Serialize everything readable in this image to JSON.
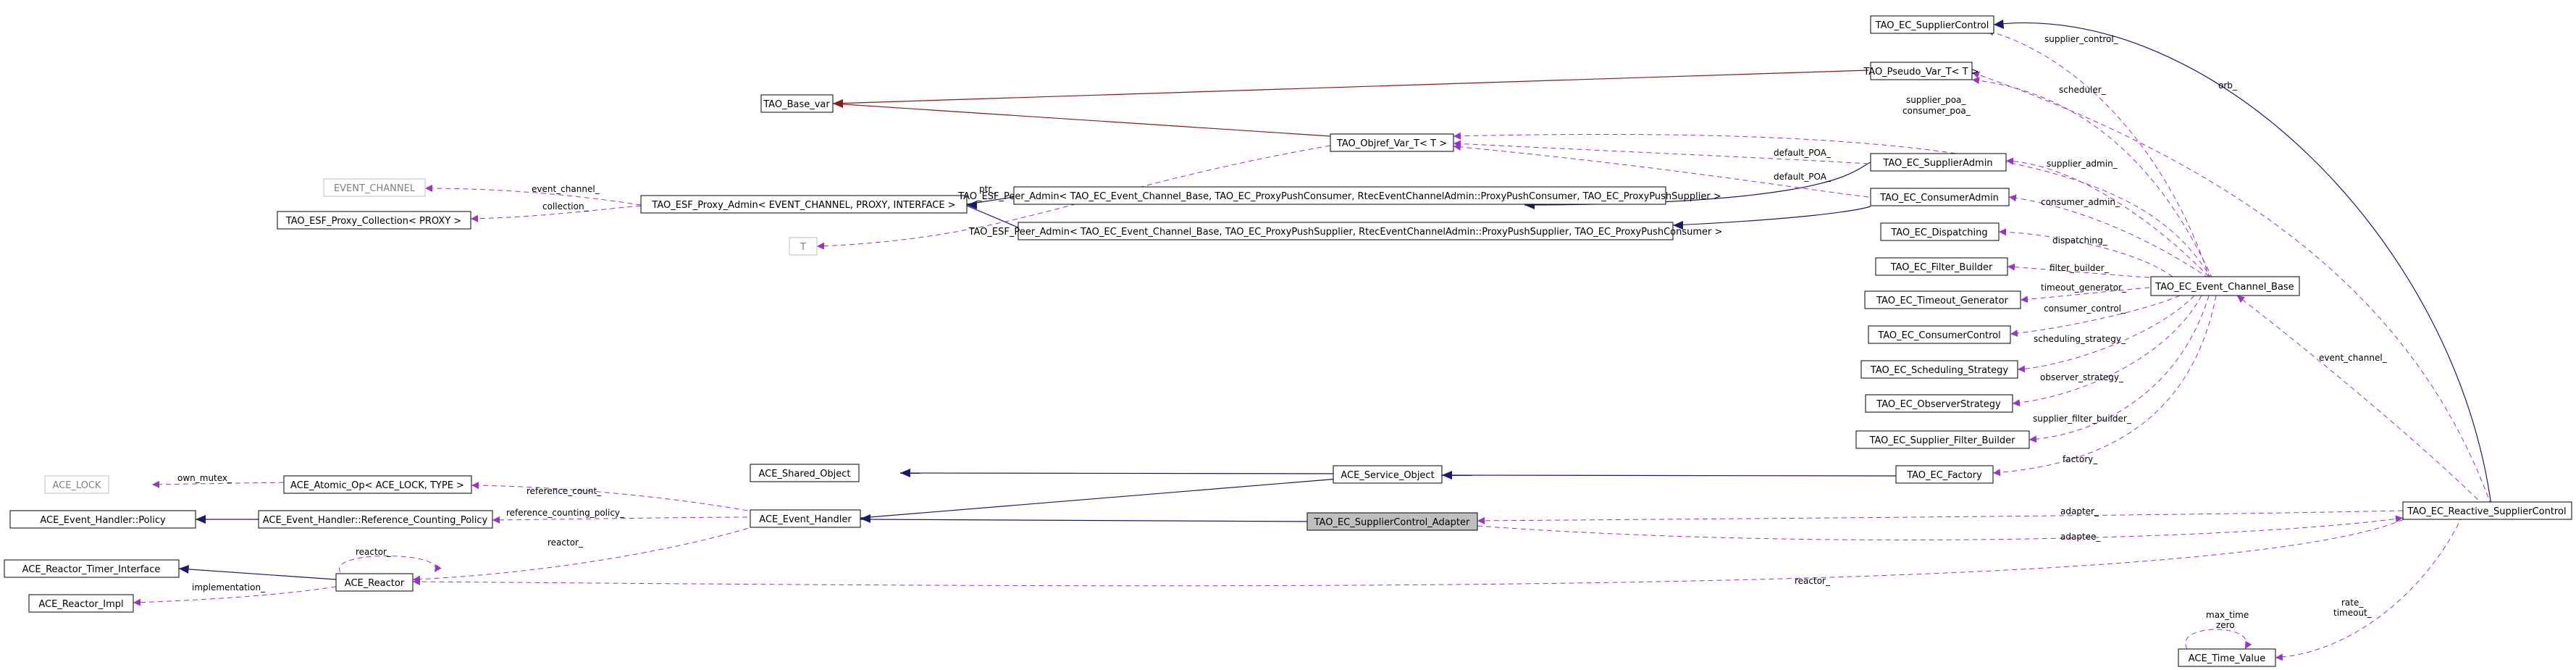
{
  "nodes": [
    {
      "id": "supplier_control",
      "label": "TAO_EC_SupplierControl"
    },
    {
      "id": "pseudo_var",
      "label": "TAO_Pseudo_Var_T< T >"
    },
    {
      "id": "base_var",
      "label": "TAO_Base_var"
    },
    {
      "id": "objref_var",
      "label": "TAO_Objref_Var_T< T >"
    },
    {
      "id": "event_channel",
      "label": "EVENT_CHANNEL"
    },
    {
      "id": "esf_proxy_admin",
      "label": "TAO_ESF_Proxy_Admin< EVENT_CHANNEL, PROXY, INTERFACE >"
    },
    {
      "id": "esf_proxy_collection",
      "label": "TAO_ESF_Proxy_Collection< PROXY >"
    },
    {
      "id": "t_param",
      "label": "T"
    },
    {
      "id": "peer_admin_consumer",
      "label": "TAO_ESF_Peer_Admin< TAO_EC_Event_Channel_Base, TAO_EC_ProxyPushConsumer, RtecEventChannelAdmin::ProxyPushConsumer, TAO_EC_ProxyPushSupplier >"
    },
    {
      "id": "peer_admin_supplier",
      "label": "TAO_ESF_Peer_Admin< TAO_EC_Event_Channel_Base, TAO_EC_ProxyPushSupplier, RtecEventChannelAdmin::ProxyPushSupplier, TAO_EC_ProxyPushConsumer >"
    },
    {
      "id": "supplier_admin",
      "label": "TAO_EC_SupplierAdmin"
    },
    {
      "id": "consumer_admin",
      "label": "TAO_EC_ConsumerAdmin"
    },
    {
      "id": "dispatching",
      "label": "TAO_EC_Dispatching"
    },
    {
      "id": "filter_builder",
      "label": "TAO_EC_Filter_Builder"
    },
    {
      "id": "timeout_generator",
      "label": "TAO_EC_Timeout_Generator"
    },
    {
      "id": "consumer_control",
      "label": "TAO_EC_ConsumerControl"
    },
    {
      "id": "scheduling_strategy",
      "label": "TAO_EC_Scheduling_Strategy"
    },
    {
      "id": "observer_strategy",
      "label": "TAO_EC_ObserverStrategy"
    },
    {
      "id": "supplier_filter_builder",
      "label": "TAO_EC_Supplier_Filter_Builder"
    },
    {
      "id": "factory",
      "label": "TAO_EC_Factory"
    },
    {
      "id": "event_channel_base",
      "label": "TAO_EC_Event_Channel_Base"
    },
    {
      "id": "ace_lock",
      "label": "ACE_LOCK"
    },
    {
      "id": "atomic_op",
      "label": "ACE_Atomic_Op< ACE_LOCK, TYPE >"
    },
    {
      "id": "shared_object",
      "label": "ACE_Shared_Object"
    },
    {
      "id": "service_object",
      "label": "ACE_Service_Object"
    },
    {
      "id": "policy",
      "label": "ACE_Event_Handler::Policy"
    },
    {
      "id": "ref_counting_policy",
      "label": "ACE_Event_Handler::Reference_Counting_Policy"
    },
    {
      "id": "event_handler",
      "label": "ACE_Event_Handler"
    },
    {
      "id": "adapter",
      "label": "TAO_EC_SupplierControl_Adapter"
    },
    {
      "id": "reactive_supplier_control",
      "label": "TAO_EC_Reactive_SupplierControl"
    },
    {
      "id": "timer_interface",
      "label": "ACE_Reactor_Timer_Interface"
    },
    {
      "id": "reactor",
      "label": "ACE_Reactor"
    },
    {
      "id": "reactor_impl",
      "label": "ACE_Reactor_Impl"
    },
    {
      "id": "time_value",
      "label": "ACE_Time_Value"
    }
  ],
  "edge_labels": [
    {
      "id": "supplier_control_",
      "text": "supplier_control_"
    },
    {
      "id": "orb_",
      "text": "orb_"
    },
    {
      "id": "scheduler_",
      "text": "scheduler_"
    },
    {
      "id": "supplier_poa_",
      "text": "supplier_poa_"
    },
    {
      "id": "consumer_poa_",
      "text": "consumer_poa_"
    },
    {
      "id": "default_poa_1",
      "text": "default_POA_"
    },
    {
      "id": "default_poa_2",
      "text": "default_POA_"
    },
    {
      "id": "event_channel_",
      "text": "event_channel_"
    },
    {
      "id": "collection_",
      "text": "collection_"
    },
    {
      "id": "ptr_",
      "text": "ptr_"
    },
    {
      "id": "supplier_admin_",
      "text": "supplier_admin_"
    },
    {
      "id": "consumer_admin_",
      "text": "consumer_admin_"
    },
    {
      "id": "dispatching_",
      "text": "dispatching_"
    },
    {
      "id": "filter_builder_",
      "text": "filter_builder_"
    },
    {
      "id": "timeout_generator_",
      "text": "timeout_generator_"
    },
    {
      "id": "consumer_control_",
      "text": "consumer_control_"
    },
    {
      "id": "scheduling_strategy_",
      "text": "scheduling_strategy_"
    },
    {
      "id": "observer_strategy_",
      "text": "observer_strategy_"
    },
    {
      "id": "supplier_filter_builder_",
      "text": "supplier_filter_builder_"
    },
    {
      "id": "factory_",
      "text": "factory_"
    },
    {
      "id": "event_channel_2",
      "text": "event_channel_"
    },
    {
      "id": "own_mutex_",
      "text": "own_mutex_"
    },
    {
      "id": "reference_count_",
      "text": "reference_count_"
    },
    {
      "id": "reference_counting_policy_",
      "text": "reference_counting_policy_"
    },
    {
      "id": "reactor_1",
      "text": "reactor_"
    },
    {
      "id": "reactor_2",
      "text": "reactor_"
    },
    {
      "id": "reactor_3",
      "text": "reactor_"
    },
    {
      "id": "implementation_",
      "text": "implementation_"
    },
    {
      "id": "adapter_",
      "text": "adapter_"
    },
    {
      "id": "adaptee_",
      "text": "adaptee_"
    },
    {
      "id": "max_time",
      "text": "max_time"
    },
    {
      "id": "zero",
      "text": "zero"
    },
    {
      "id": "rate_",
      "text": "rate_"
    },
    {
      "id": "timeout_",
      "text": "timeout_"
    }
  ],
  "colors": {
    "usage_edge": "#9a32cd",
    "inheritance_edge": "#191970",
    "template_edge": "#8b1a1a",
    "highlight_fill": "#bfbfbf",
    "ghost_border": "#bfbfbf"
  }
}
